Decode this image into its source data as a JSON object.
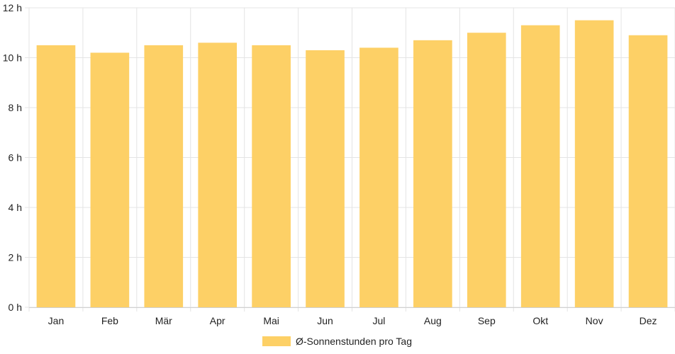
{
  "chart_data": {
    "type": "bar",
    "categories": [
      "Jan",
      "Feb",
      "Mär",
      "Apr",
      "Mai",
      "Jun",
      "Jul",
      "Aug",
      "Sep",
      "Okt",
      "Nov",
      "Dez"
    ],
    "series": [
      {
        "name": "Ø-Sonnenstunden pro Tag",
        "values": [
          10.5,
          10.2,
          10.5,
          10.6,
          10.5,
          10.3,
          10.4,
          10.7,
          11.0,
          11.3,
          11.5,
          10.9
        ],
        "color": "#fdd066"
      }
    ],
    "y_ticks": [
      "0 h",
      "2 h",
      "4 h",
      "6 h",
      "8 h",
      "10 h",
      "12 h"
    ],
    "ylim": [
      0,
      12
    ],
    "grid": true,
    "legend_position": "bottom"
  }
}
